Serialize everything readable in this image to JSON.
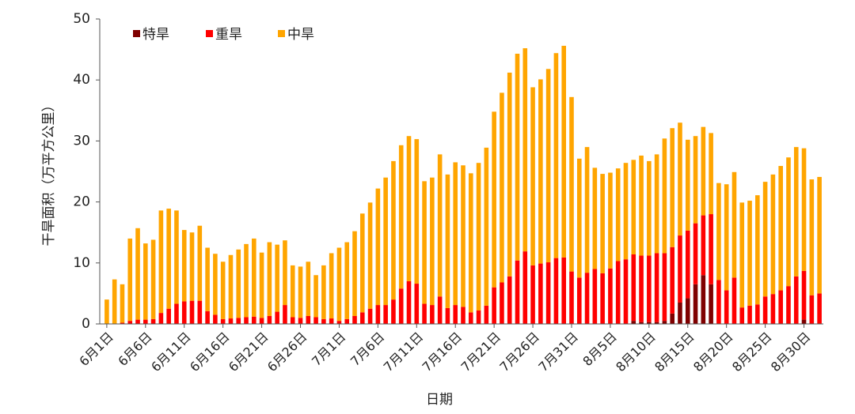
{
  "chart_data": {
    "type": "stacked_bar",
    "x_label": "日期",
    "y_label": "干旱面积（万平方公里）",
    "categories": [
      "6月1日",
      null,
      null,
      null,
      null,
      "6月6日",
      null,
      null,
      null,
      null,
      "6月11日",
      null,
      null,
      null,
      null,
      "6月16日",
      null,
      null,
      null,
      null,
      "6月21日",
      null,
      null,
      null,
      null,
      "6月26日",
      null,
      null,
      null,
      null,
      "7月1日",
      null,
      null,
      null,
      null,
      "7月6日",
      null,
      null,
      null,
      null,
      "7月11日",
      null,
      null,
      null,
      null,
      "7月16日",
      null,
      null,
      null,
      null,
      "7月21日",
      null,
      null,
      null,
      null,
      "7月26日",
      null,
      null,
      null,
      null,
      "7月31日",
      null,
      null,
      null,
      null,
      "8月5日",
      null,
      null,
      null,
      null,
      "8月10日",
      null,
      null,
      null,
      null,
      "8月15日",
      null,
      null,
      null,
      null,
      "8月20日",
      null,
      null,
      null,
      null,
      "8月25日",
      null,
      null,
      null,
      null,
      "8月30日",
      null,
      null
    ],
    "series": [
      {
        "name": "特旱",
        "color": "#7f0000",
        "values": [
          0,
          0,
          0,
          0,
          0,
          0,
          0,
          0,
          0,
          0,
          0,
          0,
          0,
          0,
          0,
          0,
          0,
          0,
          0,
          0,
          0,
          0,
          0,
          0,
          0,
          0,
          0,
          0,
          0,
          0,
          0,
          0,
          0,
          0,
          0,
          0,
          0,
          0,
          0,
          0,
          0,
          0,
          0,
          0,
          0,
          0,
          0,
          0,
          0,
          0,
          0,
          0,
          0,
          0,
          0,
          0,
          0,
          0,
          0,
          0,
          0,
          0,
          0,
          0,
          0,
          0,
          0,
          0,
          0.5,
          0.3,
          0.3,
          0.3,
          0.5,
          1.7,
          3.5,
          4.2,
          6.5,
          8.0,
          6.5,
          0,
          0,
          0,
          0,
          0,
          0,
          0,
          0,
          0,
          0,
          0,
          0.7,
          0,
          0
        ]
      },
      {
        "name": "重旱",
        "color": "#ff0000",
        "values": [
          0,
          0,
          0.2,
          0.5,
          0.7,
          0.7,
          0.8,
          1.8,
          2.5,
          3.3,
          3.7,
          3.8,
          3.8,
          2.1,
          1.5,
          0.8,
          0.9,
          1.0,
          1.1,
          1.2,
          1.0,
          1.3,
          2.0,
          3.1,
          1.1,
          1.0,
          1.3,
          1.1,
          0.8,
          0.9,
          0.5,
          0.8,
          1.3,
          1.9,
          2.5,
          3.1,
          3.1,
          4.0,
          5.8,
          7.0,
          6.6,
          3.3,
          3.1,
          4.5,
          2.6,
          3.1,
          2.8,
          1.9,
          2.2,
          3.0,
          6.0,
          6.8,
          7.8,
          10.4,
          11.9,
          9.6,
          9.9,
          10.1,
          10.8,
          10.9,
          8.6,
          7.6,
          8.4,
          9.0,
          8.3,
          9.1,
          10.3,
          10.6,
          10.9,
          10.9,
          10.9,
          11.3,
          11.1,
          10.9,
          11.0,
          11.1,
          10.0,
          9.8,
          11.5,
          7.2,
          5.5,
          7.6,
          2.7,
          3.0,
          3.2,
          4.5,
          4.9,
          5.5,
          6.2,
          7.8,
          8.0,
          4.7,
          5.0
        ]
      },
      {
        "name": "中旱",
        "color": "#ffa500",
        "values": [
          4.0,
          7.3,
          6.3,
          13.5,
          15.0,
          12.5,
          13.0,
          16.8,
          16.4,
          15.3,
          11.7,
          11.2,
          12.3,
          10.4,
          10.0,
          9.4,
          10.4,
          11.2,
          12.0,
          12.8,
          10.7,
          12.1,
          11.0,
          10.6,
          8.5,
          8.4,
          8.9,
          6.9,
          8.8,
          10.7,
          12.0,
          12.6,
          13.9,
          16.2,
          17.4,
          19.1,
          20.9,
          22.7,
          23.5,
          23.8,
          23.7,
          20.1,
          20.9,
          23.3,
          21.9,
          23.4,
          23.2,
          22.8,
          24.2,
          25.9,
          28.8,
          31.1,
          33.4,
          33.9,
          33.3,
          29.2,
          30.2,
          31.7,
          33.6,
          34.7,
          28.6,
          19.5,
          20.6,
          16.6,
          16.3,
          15.7,
          15.2,
          15.8,
          15.5,
          16.4,
          15.5,
          16.2,
          18.8,
          19.5,
          18.5,
          14.9,
          14.3,
          14.5,
          13.3,
          15.9,
          17.4,
          17.3,
          17.2,
          17.2,
          17.9,
          18.8,
          19.6,
          20.4,
          21.1,
          21.2,
          20.1,
          19.0,
          19.1
        ]
      }
    ],
    "ylim": [
      0,
      50
    ],
    "yticks": [
      0,
      10,
      20,
      30,
      40,
      50
    ],
    "grid": false,
    "legend": "top-left"
  }
}
